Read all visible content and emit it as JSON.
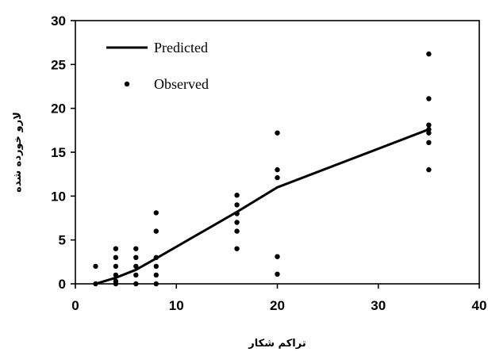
{
  "chart_data": {
    "type": "scatter",
    "xlabel": "تراکم شکار",
    "ylabel": "لارو خورده شده",
    "xlim": [
      0,
      40
    ],
    "ylim": [
      0,
      30
    ],
    "x_ticks": [
      "0",
      "10",
      "20",
      "30",
      "40"
    ],
    "y_ticks": [
      "0",
      "5",
      "10",
      "15",
      "20",
      "25",
      "30"
    ],
    "grid": false,
    "legend_position": "top-left",
    "series": [
      {
        "name": "Predicted",
        "kind": "line",
        "color": "#000000",
        "points": [
          [
            2,
            0
          ],
          [
            4,
            0.7
          ],
          [
            6,
            1.6
          ],
          [
            8,
            2.9
          ],
          [
            16,
            8.2
          ],
          [
            20,
            11
          ],
          [
            35,
            17.6
          ]
        ]
      },
      {
        "name": "Observed",
        "kind": "scatter",
        "color": "#000000",
        "points": [
          [
            2,
            0
          ],
          [
            2,
            2
          ],
          [
            4,
            0
          ],
          [
            4,
            0.3
          ],
          [
            4,
            1
          ],
          [
            4,
            2
          ],
          [
            4,
            3
          ],
          [
            4,
            4
          ],
          [
            6,
            0
          ],
          [
            6,
            1
          ],
          [
            6,
            2
          ],
          [
            6,
            3
          ],
          [
            6,
            4
          ],
          [
            8,
            0
          ],
          [
            8,
            1
          ],
          [
            8,
            2
          ],
          [
            8,
            3
          ],
          [
            8,
            6
          ],
          [
            8,
            8.1
          ],
          [
            16,
            4
          ],
          [
            16,
            6
          ],
          [
            16,
            7
          ],
          [
            16,
            8
          ],
          [
            16,
            9
          ],
          [
            16,
            10.1
          ],
          [
            20,
            1.1
          ],
          [
            20,
            3.1
          ],
          [
            20,
            12.1
          ],
          [
            20,
            13
          ],
          [
            20,
            17.2
          ],
          [
            35,
            13
          ],
          [
            35,
            16.1
          ],
          [
            35,
            17.2
          ],
          [
            35,
            17.6
          ],
          [
            35,
            18.1
          ],
          [
            35,
            21.1
          ],
          [
            35,
            26.2
          ]
        ]
      }
    ]
  }
}
